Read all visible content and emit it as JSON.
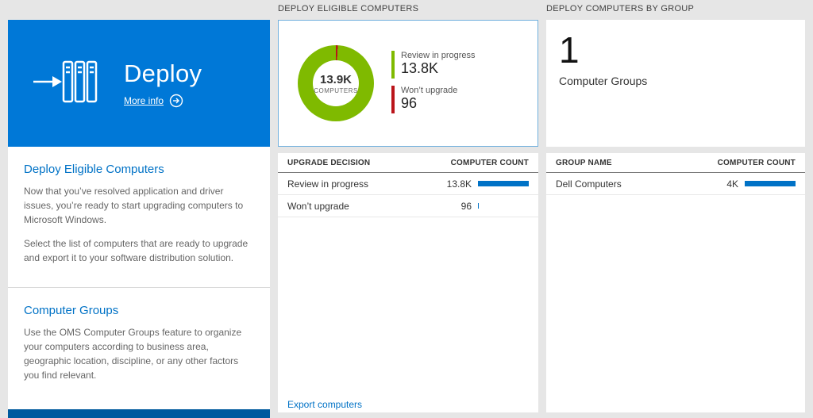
{
  "colors": {
    "tile_blue": "#0078d7",
    "accent_blue": "#0072c6",
    "bar_blue": "#0072c6",
    "ok_green": "#7fba00",
    "error_red": "#ba141a",
    "left_strip_blue": "#005a9e",
    "page_background": "#e6e6e6"
  },
  "left": {
    "tile": {
      "title": "Deploy",
      "more_info": "More info"
    },
    "sections": [
      {
        "heading": "Deploy Eligible Computers",
        "paragraphs": [
          "Now that you’ve resolved application and driver issues, you’re ready to start upgrading computers to Microsoft Windows.",
          "Select the list of computers that are ready to upgrade and export it to your software distribution solution."
        ]
      },
      {
        "heading": "Computer Groups",
        "paragraphs": [
          "Use the OMS Computer Groups feature to organize your computers according to business area, geographic location, discipline, or any other factors you find relevant."
        ]
      }
    ]
  },
  "chart_data": {
    "type": "pie",
    "title": "Deploy Eligible Computers",
    "center_value": "13.9K",
    "center_label": "COMPUTERS",
    "slices": [
      {
        "label": "Review in progress",
        "value": 13800,
        "display": "13.8K",
        "color": "#7fba00"
      },
      {
        "label": "Won’t upgrade",
        "value": 96,
        "display": "96",
        "color": "#ba141a"
      }
    ],
    "legend_position": "right"
  },
  "middle": {
    "title": "DEPLOY ELIGIBLE COMPUTERS",
    "table": {
      "columns": [
        "UPGRADE DECISION",
        "COMPUTER COUNT"
      ],
      "rows": [
        {
          "label": "Review in progress",
          "value": "13.8K",
          "bar_pct": 100
        },
        {
          "label": "Won’t upgrade",
          "value": "96",
          "bar_pct": 1.5
        }
      ]
    },
    "export_link": "Export computers"
  },
  "right": {
    "title": "DEPLOY COMPUTERS BY GROUP",
    "summary": {
      "value": "1",
      "label": "Computer Groups"
    },
    "table": {
      "columns": [
        "GROUP NAME",
        "COMPUTER COUNT"
      ],
      "rows": [
        {
          "label": "Dell Computers",
          "value": "4K",
          "bar_pct": 100
        }
      ]
    }
  }
}
